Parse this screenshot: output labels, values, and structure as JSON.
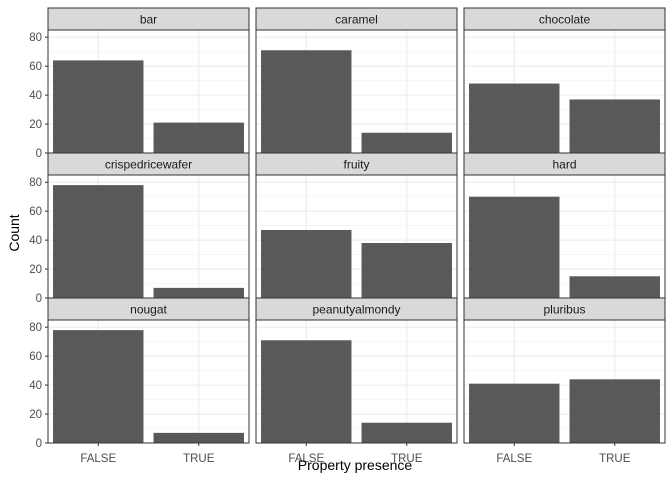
{
  "chart_data": {
    "type": "bar",
    "xlabel": "Property presence",
    "ylabel": "Count",
    "categories": [
      "FALSE",
      "TRUE"
    ],
    "ylim": [
      0,
      85
    ],
    "yticks": [
      0,
      20,
      40,
      60,
      80
    ],
    "grid": true,
    "bar_color": "#595959",
    "panels": [
      {
        "name": "bar",
        "values": [
          64,
          21
        ]
      },
      {
        "name": "caramel",
        "values": [
          71,
          14
        ]
      },
      {
        "name": "chocolate",
        "values": [
          48,
          37
        ]
      },
      {
        "name": "crispedricewafer",
        "values": [
          78,
          7
        ]
      },
      {
        "name": "fruity",
        "values": [
          47,
          38
        ]
      },
      {
        "name": "hard",
        "values": [
          70,
          15
        ]
      },
      {
        "name": "nougat",
        "values": [
          78,
          7
        ]
      },
      {
        "name": "peanutyalmondy",
        "values": [
          71,
          14
        ]
      },
      {
        "name": "pluribus",
        "values": [
          41,
          44
        ]
      }
    ]
  }
}
